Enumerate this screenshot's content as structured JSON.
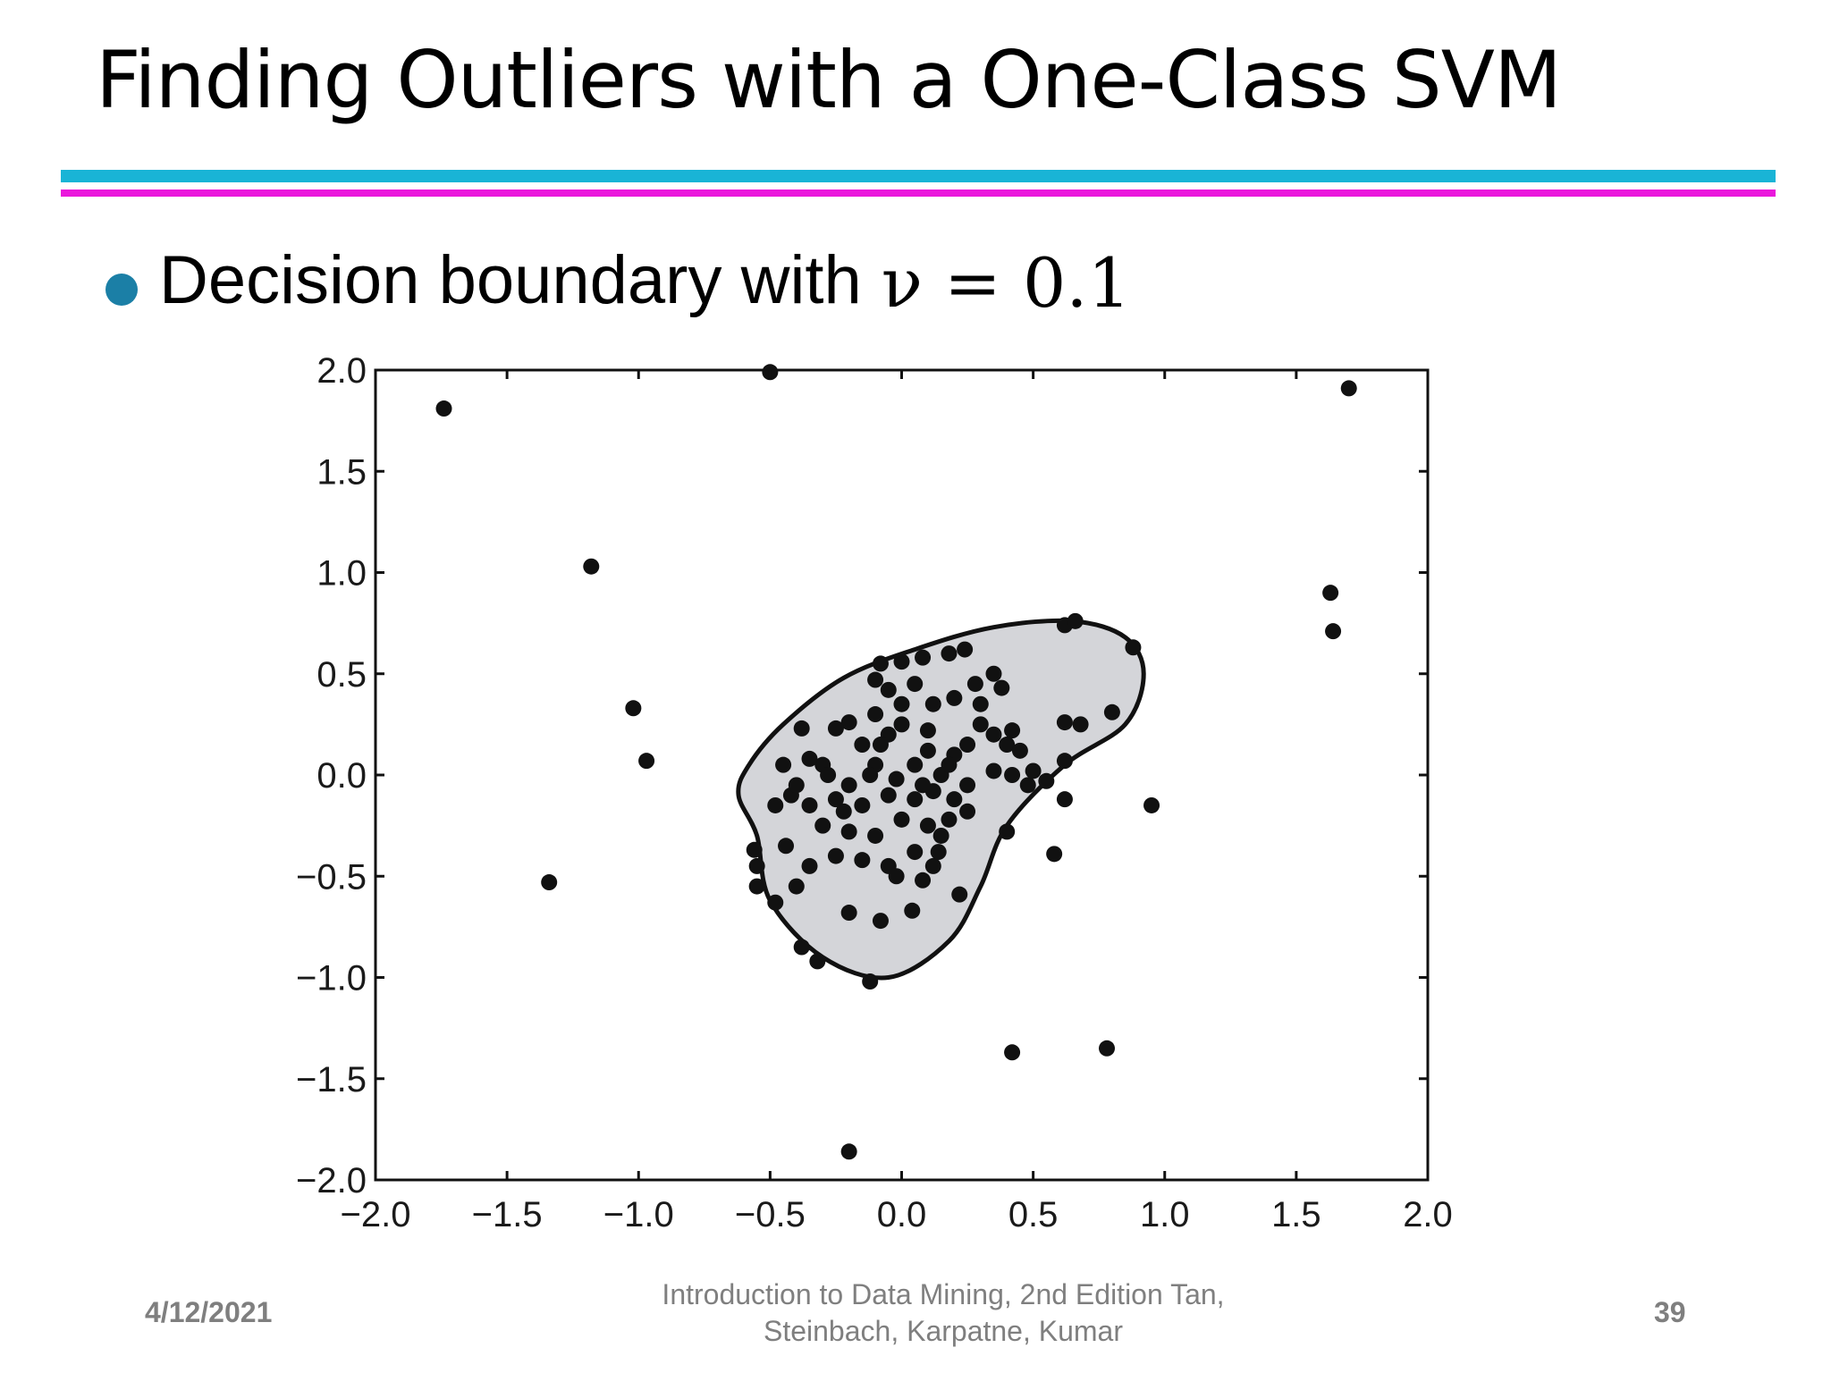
{
  "slide": {
    "title": "Finding Outliers with a One-Class SVM",
    "bullet_text": "Decision boundary with",
    "bullet_math": "ν = 0.1",
    "footer_date": "4/12/2021",
    "footer_source": "Introduction to Data Mining, 2nd Edition   Tan, Steinbach, Karpatne, Kumar",
    "footer_page": "39",
    "colors": {
      "rule_cyan": "#19b4d6",
      "rule_magenta": "#ea17dc",
      "bullet": "#1b7fa6",
      "region_fill": "#d4d5d9"
    }
  },
  "chart_data": {
    "type": "scatter",
    "title": "",
    "xlabel": "",
    "ylabel": "",
    "xlim": [
      -2.0,
      2.0
    ],
    "ylim": [
      -2.0,
      2.0
    ],
    "xticks": [
      "−2.0",
      "−1.5",
      "−1.0",
      "−0.5",
      "0.0",
      "0.5",
      "1.0",
      "1.5",
      "2.0"
    ],
    "yticks": [
      "2.0",
      "1.5",
      "1.0",
      "0.5",
      "0.0",
      "−0.5",
      "−1.0",
      "−1.5",
      "−2.0"
    ],
    "grid": false,
    "decision_boundary": [
      [
        -0.55,
        -0.3
      ],
      [
        -0.62,
        -0.1
      ],
      [
        -0.58,
        0.05
      ],
      [
        -0.45,
        0.25
      ],
      [
        -0.22,
        0.48
      ],
      [
        0.05,
        0.62
      ],
      [
        0.35,
        0.73
      ],
      [
        0.65,
        0.76
      ],
      [
        0.85,
        0.68
      ],
      [
        0.92,
        0.5
      ],
      [
        0.85,
        0.25
      ],
      [
        0.62,
        0.05
      ],
      [
        0.4,
        -0.25
      ],
      [
        0.3,
        -0.55
      ],
      [
        0.18,
        -0.82
      ],
      [
        -0.05,
        -1.0
      ],
      [
        -0.3,
        -0.9
      ],
      [
        -0.5,
        -0.62
      ]
    ],
    "points": [
      [
        -1.74,
        1.81
      ],
      [
        -0.5,
        1.99
      ],
      [
        1.7,
        1.91
      ],
      [
        -1.18,
        1.03
      ],
      [
        1.63,
        0.9
      ],
      [
        1.64,
        0.71
      ],
      [
        -1.02,
        0.33
      ],
      [
        -0.97,
        0.07
      ],
      [
        -1.34,
        -0.53
      ],
      [
        0.95,
        -0.15
      ],
      [
        0.58,
        -0.39
      ],
      [
        0.42,
        -1.37
      ],
      [
        0.78,
        -1.35
      ],
      [
        -0.2,
        -1.86
      ],
      [
        0.62,
        0.74
      ],
      [
        0.66,
        0.76
      ],
      [
        0.88,
        0.63
      ],
      [
        0.8,
        0.31
      ],
      [
        0.62,
        0.26
      ],
      [
        0.68,
        0.25
      ],
      [
        0.62,
        0.07
      ],
      [
        0.62,
        -0.12
      ],
      [
        0.4,
        -0.28
      ],
      [
        -0.38,
        -0.85
      ],
      [
        -0.32,
        -0.92
      ],
      [
        -0.12,
        -1.02
      ],
      [
        -0.56,
        -0.37
      ],
      [
        -0.55,
        -0.45
      ],
      [
        -0.55,
        -0.55
      ],
      [
        -0.48,
        -0.63
      ],
      [
        -0.2,
        -0.68
      ],
      [
        -0.08,
        -0.72
      ],
      [
        0.04,
        -0.67
      ],
      [
        0.22,
        -0.59
      ],
      [
        -0.44,
        -0.35
      ],
      [
        -0.4,
        -0.55
      ],
      [
        -0.2,
        0.26
      ],
      [
        -0.25,
        0.23
      ],
      [
        -0.38,
        0.23
      ],
      [
        -0.45,
        0.05
      ],
      [
        -0.42,
        -0.1
      ],
      [
        -0.48,
        -0.15
      ],
      [
        -0.1,
        0.47
      ],
      [
        -0.08,
        0.55
      ],
      [
        0.0,
        0.56
      ],
      [
        0.08,
        0.58
      ],
      [
        0.18,
        0.6
      ],
      [
        0.24,
        0.62
      ],
      [
        0.35,
        0.5
      ],
      [
        0.38,
        0.43
      ],
      [
        0.05,
        0.45
      ],
      [
        -0.05,
        0.42
      ],
      [
        0.12,
        0.35
      ],
      [
        0.2,
        0.38
      ],
      [
        0.3,
        0.35
      ],
      [
        0.42,
        0.22
      ],
      [
        0.35,
        0.2
      ],
      [
        0.3,
        0.25
      ],
      [
        0.4,
        0.15
      ],
      [
        0.45,
        0.12
      ],
      [
        0.25,
        0.15
      ],
      [
        0.2,
        0.1
      ],
      [
        0.1,
        0.12
      ],
      [
        0.0,
        0.25
      ],
      [
        -0.1,
        0.3
      ],
      [
        -0.05,
        0.2
      ],
      [
        -0.15,
        0.15
      ],
      [
        -0.3,
        0.05
      ],
      [
        -0.35,
        0.08
      ],
      [
        -0.28,
        0.0
      ],
      [
        -0.2,
        -0.05
      ],
      [
        -0.1,
        0.05
      ],
      [
        0.05,
        0.05
      ],
      [
        0.15,
        0.0
      ],
      [
        0.25,
        -0.05
      ],
      [
        0.35,
        0.02
      ],
      [
        0.42,
        0.0
      ],
      [
        0.48,
        -0.05
      ],
      [
        0.5,
        0.02
      ],
      [
        0.55,
        -0.03
      ],
      [
        -0.35,
        -0.15
      ],
      [
        -0.25,
        -0.12
      ],
      [
        -0.15,
        -0.15
      ],
      [
        -0.05,
        -0.1
      ],
      [
        0.05,
        -0.12
      ],
      [
        0.12,
        -0.08
      ],
      [
        0.2,
        -0.12
      ],
      [
        0.25,
        -0.18
      ],
      [
        -0.3,
        -0.25
      ],
      [
        -0.2,
        -0.28
      ],
      [
        -0.1,
        -0.3
      ],
      [
        0.0,
        -0.22
      ],
      [
        0.1,
        -0.25
      ],
      [
        0.15,
        -0.3
      ],
      [
        -0.25,
        -0.4
      ],
      [
        -0.15,
        -0.42
      ],
      [
        -0.05,
        -0.45
      ],
      [
        0.05,
        -0.38
      ],
      [
        0.12,
        -0.45
      ],
      [
        -0.35,
        -0.45
      ],
      [
        -0.02,
        -0.5
      ],
      [
        0.08,
        -0.52
      ],
      [
        0.14,
        -0.38
      ],
      [
        0.18,
        -0.22
      ],
      [
        -0.12,
        0.0
      ],
      [
        -0.02,
        -0.02
      ],
      [
        0.08,
        -0.05
      ],
      [
        0.18,
        0.05
      ],
      [
        -0.22,
        -0.18
      ],
      [
        -0.4,
        -0.05
      ],
      [
        0.0,
        0.35
      ],
      [
        0.1,
        0.22
      ],
      [
        0.28,
        0.45
      ],
      [
        -0.08,
        0.15
      ]
    ]
  }
}
